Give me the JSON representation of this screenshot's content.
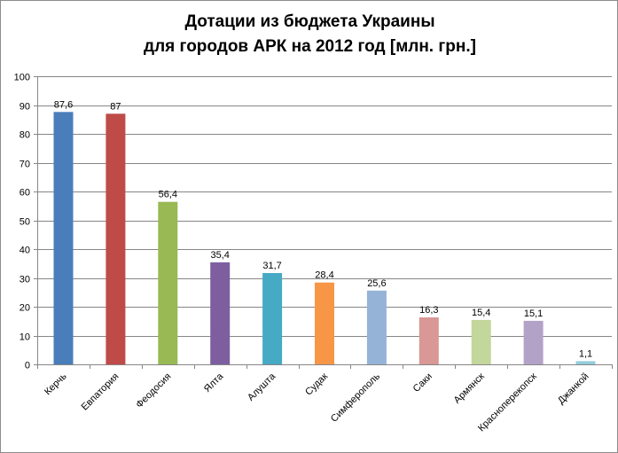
{
  "chart_data": {
    "type": "bar",
    "title_lines": [
      "Дотации из бюджета Украины",
      "для городов АРК на 2012 год [млн. грн.]"
    ],
    "categories": [
      "Керчь",
      "Евпатория",
      "Феодосия",
      "Ялта",
      "Алушта",
      "Судак",
      "Симферополь",
      "Саки",
      "Армянск",
      "Красноперекопск",
      "Джанкой"
    ],
    "values": [
      87.6,
      87,
      56.4,
      35.4,
      31.7,
      28.4,
      25.6,
      16.3,
      15.4,
      15.1,
      1.1
    ],
    "data_labels": [
      "87,6",
      "87",
      "56,4",
      "35,4",
      "31,7",
      "28,4",
      "25,6",
      "16,3",
      "15,4",
      "15,1",
      "1,1"
    ],
    "colors": [
      "#4A7EBB",
      "#BE4B48",
      "#98B954",
      "#7D5FA0",
      "#46AAC5",
      "#F79646",
      "#95B3D7",
      "#D99795",
      "#C3D69B",
      "#B3A2C7",
      "#93CDDD"
    ],
    "ylim": [
      0,
      100
    ],
    "yticks": [
      0,
      10,
      20,
      30,
      40,
      50,
      60,
      70,
      80,
      90,
      100
    ],
    "grid": true,
    "legend": "none"
  }
}
